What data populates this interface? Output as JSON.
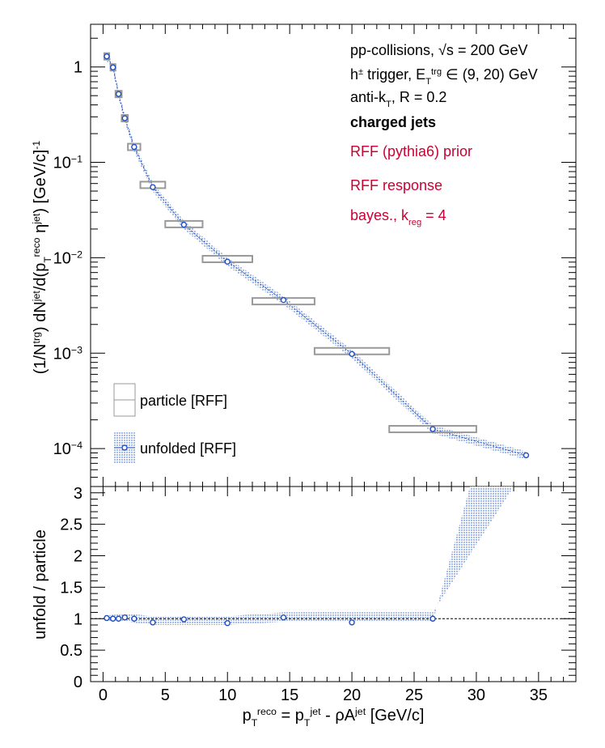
{
  "chart_data": [
    {
      "type": "scatter",
      "panel": "top",
      "ylabel_parts": [
        "(1/N",
        "trg",
        ") dN",
        "jet",
        "/d(p",
        "T",
        "reco",
        " η",
        "jet",
        ") [GeV/c]",
        "-1"
      ],
      "log_y": true,
      "xlim": [
        -1,
        38
      ],
      "ylim": [
        4e-05,
        2.8
      ],
      "y_tick_labels": [
        {
          "value": 1,
          "label": "1"
        },
        {
          "value": 0.1,
          "label": "10",
          "exp": "−1"
        },
        {
          "value": 0.01,
          "label": "10",
          "exp": "−2"
        },
        {
          "value": 0.001,
          "label": "10",
          "exp": "−3"
        },
        {
          "value": 0.0001,
          "label": "10",
          "exp": "−4"
        }
      ],
      "annotations": [
        {
          "parts": [
            {
              "t": "pp-collisions, "
            },
            {
              "t": "√s"
            },
            {
              "t": " = 200 GeV"
            }
          ],
          "color": "#000000",
          "bold": false
        },
        {
          "parts": [
            {
              "t": "h"
            },
            {
              "t": "±",
              "sup": true
            },
            {
              "t": " trigger, E"
            },
            {
              "t": "T",
              "sub": true
            },
            {
              "t": "trg",
              "sup": true
            },
            {
              "t": " ∈ (9, 20) GeV"
            }
          ],
          "color": "#000000",
          "bold": false
        },
        {
          "parts": [
            {
              "t": "anti-k"
            },
            {
              "t": "T",
              "sub": true
            },
            {
              "t": ", R = 0.2"
            }
          ],
          "color": "#000000",
          "bold": false
        },
        {
          "parts": [
            {
              "t": "charged jets"
            }
          ],
          "color": "#000000",
          "bold": true
        },
        {
          "parts": [
            {
              "t": "RFF (pythia6) prior"
            }
          ],
          "color": "#cc0033",
          "bold": false
        },
        {
          "parts": [
            {
              "t": "RFF response"
            }
          ],
          "color": "#cc0033",
          "bold": false
        },
        {
          "parts": [
            {
              "t": "bayes., k"
            },
            {
              "t": "reg",
              "sub": true
            },
            {
              "t": " = 4"
            }
          ],
          "color": "#cc0033",
          "bold": false
        }
      ],
      "legend": [
        {
          "label": "particle [RFF]",
          "style": "box"
        },
        {
          "label": "unfolded [RFF]",
          "style": "hatched-marker"
        }
      ],
      "series": [
        {
          "name": "particle [RFF]",
          "color": "#999999",
          "points": [
            {
              "x0": 0.1,
              "x1": 0.5,
              "y": 1.29
            },
            {
              "x0": 0.6,
              "x1": 1.0,
              "y": 0.99
            },
            {
              "x0": 1.0,
              "x1": 1.5,
              "y": 0.52
            },
            {
              "x0": 1.5,
              "x1": 2.0,
              "y": 0.29
            },
            {
              "x0": 2.0,
              "x1": 3.0,
              "y": 0.145
            },
            {
              "x0": 3.0,
              "x1": 5.0,
              "y": 0.058
            },
            {
              "x0": 5.0,
              "x1": 8.0,
              "y": 0.0225
            },
            {
              "x0": 8.0,
              "x1": 12.0,
              "y": 0.0097
            },
            {
              "x0": 12.0,
              "x1": 17.0,
              "y": 0.0035
            },
            {
              "x0": 17.0,
              "x1": 23.0,
              "y": 0.00105
            },
            {
              "x0": 23.0,
              "x1": 30.0,
              "y": 0.00016
            }
          ]
        },
        {
          "name": "unfolded [RFF]",
          "color": "#1f4fbf",
          "points": [
            {
              "x": 0.3,
              "y": 1.29
            },
            {
              "x": 0.8,
              "y": 0.99
            },
            {
              "x": 1.25,
              "y": 0.52
            },
            {
              "x": 1.75,
              "y": 0.29
            },
            {
              "x": 2.5,
              "y": 0.145
            },
            {
              "x": 4.0,
              "y": 0.055
            },
            {
              "x": 6.5,
              "y": 0.0222
            },
            {
              "x": 10.0,
              "y": 0.0091
            },
            {
              "x": 14.5,
              "y": 0.0036
            },
            {
              "x": 20.0,
              "y": 0.00098
            },
            {
              "x": 26.5,
              "y": 0.00016
            },
            {
              "x": 34.0,
              "y": 8.5e-05
            }
          ],
          "band_rel": 0.1
        }
      ]
    },
    {
      "type": "scatter",
      "panel": "bottom",
      "ylabel": "unfold / particle",
      "xlabel_parts": [
        "p",
        "T",
        "reco",
        " = p",
        "T",
        "jet",
        " - ρA",
        "jet",
        " [GeV/c]"
      ],
      "xlim": [
        -1,
        38
      ],
      "ylim": [
        0,
        3.1
      ],
      "x_ticks": [
        0,
        5,
        10,
        15,
        20,
        25,
        30,
        35
      ],
      "y_ticks": [
        0,
        0.5,
        1,
        1.5,
        2,
        2.5,
        3
      ],
      "y_tick_labels": [
        "0",
        "0.5",
        "1",
        "1.5",
        "2",
        "2.5",
        "3"
      ],
      "reference_line": 1,
      "series": [
        {
          "name": "ratio",
          "color": "#1f4fbf",
          "points": [
            {
              "x": 0.3,
              "y": 1.01
            },
            {
              "x": 0.8,
              "y": 1.0
            },
            {
              "x": 1.25,
              "y": 1.0
            },
            {
              "x": 1.75,
              "y": 1.02
            },
            {
              "x": 2.5,
              "y": 1.0
            },
            {
              "x": 4.0,
              "y": 0.94
            },
            {
              "x": 6.5,
              "y": 0.99
            },
            {
              "x": 10.0,
              "y": 0.93
            },
            {
              "x": 14.5,
              "y": 1.02
            },
            {
              "x": 20.0,
              "y": 0.94
            },
            {
              "x": 26.5,
              "y": 1.0
            }
          ],
          "band_upper": [
            {
              "x": 0.1,
              "y": 1.05
            },
            {
              "x": 2.0,
              "y": 1.08
            },
            {
              "x": 4.0,
              "y": 1.04
            },
            {
              "x": 10.0,
              "y": 1.04
            },
            {
              "x": 14.5,
              "y": 1.1
            },
            {
              "x": 26.5,
              "y": 1.1
            },
            {
              "x": 33.0,
              "y": 3.1
            }
          ],
          "band_lower": [
            {
              "x": 0.1,
              "y": 0.97
            },
            {
              "x": 2.0,
              "y": 0.95
            },
            {
              "x": 4.0,
              "y": 0.9
            },
            {
              "x": 10.0,
              "y": 0.9
            },
            {
              "x": 14.5,
              "y": 0.95
            },
            {
              "x": 26.5,
              "y": 0.95
            },
            {
              "x": 29.5,
              "y": 3.1
            }
          ]
        }
      ]
    }
  ]
}
